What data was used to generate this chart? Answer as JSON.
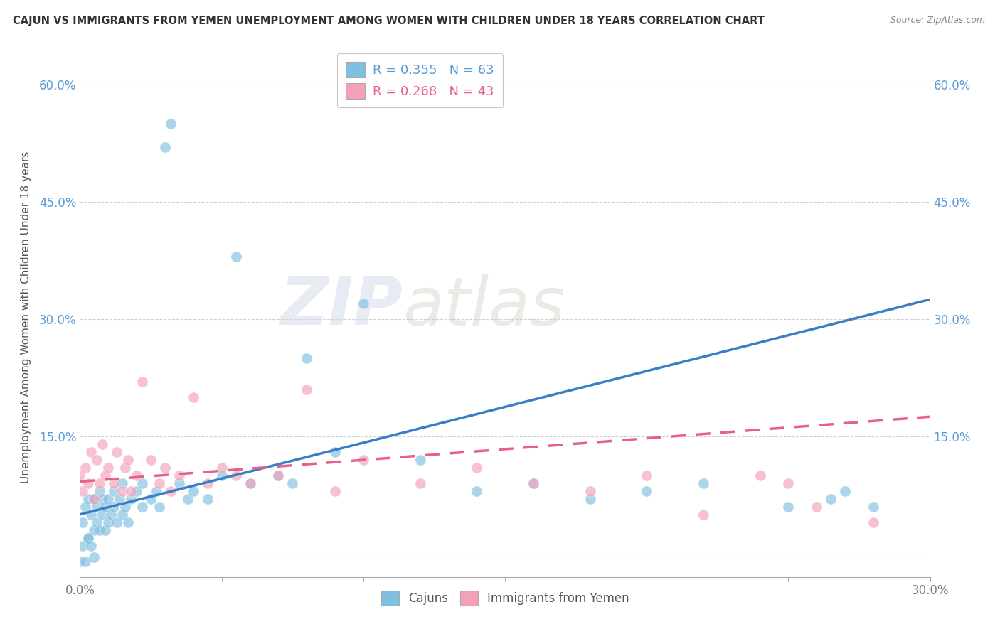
{
  "title": "CAJUN VS IMMIGRANTS FROM YEMEN UNEMPLOYMENT AMONG WOMEN WITH CHILDREN UNDER 18 YEARS CORRELATION CHART",
  "source": "Source: ZipAtlas.com",
  "ylabel": "Unemployment Among Women with Children Under 18 years",
  "legend_label1": "R = 0.355   N = 63",
  "legend_label2": "R = 0.268   N = 43",
  "x_min": 0.0,
  "x_max": 0.3,
  "y_min": -0.03,
  "y_max": 0.635,
  "x_ticks": [
    0.0,
    0.05,
    0.1,
    0.15,
    0.2,
    0.25,
    0.3
  ],
  "x_tick_labels": [
    "0.0%",
    "",
    "",
    "",
    "",
    "",
    "30.0%"
  ],
  "y_ticks": [
    0.0,
    0.15,
    0.3,
    0.45,
    0.6
  ],
  "y_tick_labels": [
    "",
    "15.0%",
    "30.0%",
    "45.0%",
    "60.0%"
  ],
  "color_cajun": "#7fbfdf",
  "color_yemen": "#f4a0b8",
  "color_line_cajun": "#3a7ec6",
  "color_line_yemen": "#e8608a",
  "bg_color": "#ffffff",
  "cajun_line_x0": 0.0,
  "cajun_line_y0": 0.05,
  "cajun_line_x1": 0.3,
  "cajun_line_y1": 0.325,
  "yemen_line_x0": 0.0,
  "yemen_line_y0": 0.092,
  "yemen_line_x1": 0.3,
  "yemen_line_y1": 0.175,
  "cajun_pts_x": [
    0.001,
    0.002,
    0.003,
    0.003,
    0.004,
    0.005,
    0.005,
    0.006,
    0.006,
    0.007,
    0.007,
    0.008,
    0.008,
    0.009,
    0.009,
    0.01,
    0.01,
    0.011,
    0.012,
    0.012,
    0.013,
    0.014,
    0.015,
    0.015,
    0.016,
    0.017,
    0.018,
    0.02,
    0.022,
    0.022,
    0.025,
    0.027,
    0.028,
    0.03,
    0.032,
    0.035,
    0.038,
    0.04,
    0.045,
    0.05,
    0.055,
    0.06,
    0.07,
    0.075,
    0.08,
    0.09,
    0.1,
    0.12,
    0.14,
    0.16,
    0.18,
    0.2,
    0.22,
    0.25,
    0.265,
    0.27,
    0.28,
    0.0,
    0.001,
    0.002,
    0.003,
    0.004,
    0.005
  ],
  "cajun_pts_y": [
    0.04,
    0.06,
    0.02,
    0.07,
    0.05,
    0.03,
    0.07,
    0.04,
    0.06,
    0.03,
    0.08,
    0.05,
    0.07,
    0.03,
    0.06,
    0.04,
    0.07,
    0.05,
    0.06,
    0.08,
    0.04,
    0.07,
    0.05,
    0.09,
    0.06,
    0.04,
    0.07,
    0.08,
    0.09,
    0.06,
    0.07,
    0.08,
    0.06,
    0.52,
    0.55,
    0.09,
    0.07,
    0.08,
    0.07,
    0.1,
    0.38,
    0.09,
    0.1,
    0.09,
    0.25,
    0.13,
    0.32,
    0.12,
    0.08,
    0.09,
    0.07,
    0.08,
    0.09,
    0.06,
    0.07,
    0.08,
    0.06,
    -0.01,
    0.01,
    -0.01,
    0.02,
    0.01,
    -0.005
  ],
  "yemen_pts_x": [
    0.0,
    0.001,
    0.002,
    0.003,
    0.004,
    0.005,
    0.006,
    0.007,
    0.008,
    0.009,
    0.01,
    0.012,
    0.013,
    0.015,
    0.016,
    0.017,
    0.018,
    0.02,
    0.022,
    0.025,
    0.028,
    0.03,
    0.032,
    0.035,
    0.04,
    0.045,
    0.05,
    0.055,
    0.06,
    0.07,
    0.08,
    0.09,
    0.1,
    0.12,
    0.14,
    0.16,
    0.18,
    0.2,
    0.22,
    0.24,
    0.25,
    0.26,
    0.28
  ],
  "yemen_pts_y": [
    0.1,
    0.08,
    0.11,
    0.09,
    0.13,
    0.07,
    0.12,
    0.09,
    0.14,
    0.1,
    0.11,
    0.09,
    0.13,
    0.08,
    0.11,
    0.12,
    0.08,
    0.1,
    0.22,
    0.12,
    0.09,
    0.11,
    0.08,
    0.1,
    0.2,
    0.09,
    0.11,
    0.1,
    0.09,
    0.1,
    0.21,
    0.08,
    0.12,
    0.09,
    0.11,
    0.09,
    0.08,
    0.1,
    0.05,
    0.1,
    0.09,
    0.06,
    0.04
  ]
}
